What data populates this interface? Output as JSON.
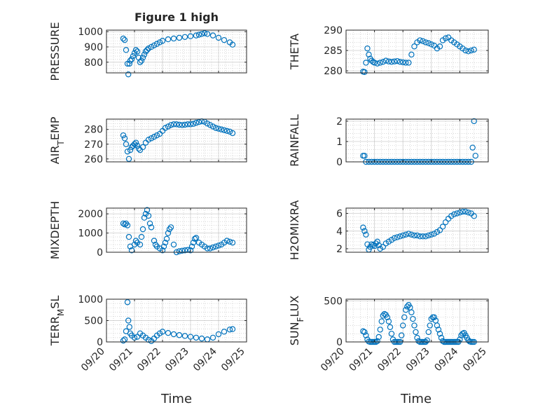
{
  "figure": {
    "title": "Figure 1 high",
    "xlabel": "Time",
    "colors": {
      "marker": "#0072BD",
      "axis": "#262626",
      "grid": "#b0b0b0",
      "background": "#ffffff"
    }
  },
  "chart_data": [
    {
      "type": "scatter",
      "title": "Figure 1 high",
      "ylabel": "PRESSURE",
      "xlabel": "",
      "x_range": [
        "09/20",
        "09/25"
      ],
      "x_ticks": [
        "09/20",
        "09/21",
        "09/22",
        "09/23",
        "09/24",
        "09/25"
      ],
      "show_x_ticklabels": false,
      "ylim": [
        730,
        1010
      ],
      "y_ticks": [
        800,
        900,
        1000
      ],
      "grid": true,
      "x_days": [
        20.6,
        20.65,
        20.7,
        20.75,
        20.78,
        20.82,
        20.85,
        20.9,
        20.95,
        21.0,
        21.05,
        21.1,
        21.15,
        21.2,
        21.25,
        21.3,
        21.35,
        21.4,
        21.45,
        21.5,
        21.6,
        21.7,
        21.8,
        21.9,
        22.0,
        22.2,
        22.4,
        22.6,
        22.8,
        23.0,
        23.2,
        23.3,
        23.4,
        23.5,
        23.6,
        23.8,
        24.0,
        24.2,
        24.4,
        24.5
      ],
      "values": [
        955,
        945,
        880,
        790,
        720,
        790,
        810,
        820,
        840,
        860,
        880,
        870,
        830,
        800,
        810,
        830,
        850,
        870,
        880,
        890,
        900,
        910,
        920,
        930,
        940,
        950,
        955,
        960,
        965,
        970,
        975,
        980,
        985,
        990,
        985,
        975,
        960,
        945,
        930,
        915
      ]
    },
    {
      "type": "scatter",
      "ylabel": "THETA",
      "xlabel": "",
      "x_range": [
        "09/20",
        "09/25"
      ],
      "x_ticks": [
        "09/20",
        "09/21",
        "09/22",
        "09/23",
        "09/24",
        "09/25"
      ],
      "show_x_ticklabels": false,
      "ylim": [
        279.5,
        290
      ],
      "y_ticks": [
        280,
        285,
        290
      ],
      "grid": true,
      "x_days": [
        20.6,
        20.65,
        20.7,
        20.75,
        20.8,
        20.85,
        20.9,
        20.95,
        21.0,
        21.1,
        21.2,
        21.3,
        21.4,
        21.5,
        21.6,
        21.7,
        21.8,
        21.9,
        22.0,
        22.1,
        22.2,
        22.3,
        22.4,
        22.5,
        22.6,
        22.7,
        22.8,
        22.9,
        23.0,
        23.1,
        23.2,
        23.3,
        23.4,
        23.5,
        23.6,
        23.7,
        23.8,
        23.9,
        24.0,
        24.1,
        24.2,
        24.3,
        24.4,
        24.5
      ],
      "values": [
        279.8,
        279.7,
        282.0,
        285.5,
        284.0,
        283.0,
        282.5,
        282.2,
        282.0,
        281.8,
        282.0,
        282.2,
        282.5,
        282.3,
        282.2,
        282.3,
        282.4,
        282.2,
        282.1,
        282.0,
        282.0,
        284.0,
        286.0,
        287.0,
        287.5,
        287.3,
        287.0,
        286.8,
        286.5,
        286.2,
        285.5,
        286.0,
        287.5,
        288.0,
        288.2,
        287.5,
        287.0,
        286.5,
        286.0,
        285.5,
        285.0,
        284.8,
        285.0,
        285.2
      ]
    },
    {
      "type": "scatter",
      "ylabel": "AIR_TEMP",
      "xlabel": "",
      "x_range": [
        "09/20",
        "09/25"
      ],
      "x_ticks": [
        "09/20",
        "09/21",
        "09/22",
        "09/23",
        "09/24",
        "09/25"
      ],
      "show_x_ticklabels": false,
      "ylim": [
        258,
        287
      ],
      "y_ticks": [
        260,
        270,
        280
      ],
      "grid": true,
      "x_days": [
        20.6,
        20.65,
        20.7,
        20.75,
        20.8,
        20.85,
        20.9,
        20.95,
        21.0,
        21.05,
        21.1,
        21.15,
        21.2,
        21.3,
        21.4,
        21.5,
        21.6,
        21.7,
        21.8,
        21.9,
        22.0,
        22.1,
        22.2,
        22.3,
        22.4,
        22.5,
        22.6,
        22.7,
        22.8,
        22.9,
        23.0,
        23.1,
        23.2,
        23.3,
        23.4,
        23.5,
        23.6,
        23.7,
        23.8,
        23.9,
        24.0,
        24.1,
        24.2,
        24.3,
        24.4,
        24.5
      ],
      "values": [
        276,
        274,
        270,
        265,
        260,
        266,
        268,
        269,
        270,
        271,
        269,
        267,
        266,
        268,
        271,
        273,
        274,
        275,
        276,
        277,
        279,
        281,
        282,
        283,
        283.5,
        283.5,
        283.2,
        283.0,
        283.2,
        283.5,
        283.5,
        283.8,
        284.5,
        285.0,
        285.5,
        285.2,
        284.0,
        283.0,
        282.0,
        281.0,
        280.5,
        280.0,
        279.5,
        279.0,
        278.5,
        277.5
      ]
    },
    {
      "type": "scatter",
      "ylabel": "RAINFALL",
      "xlabel": "",
      "x_range": [
        "09/20",
        "09/25"
      ],
      "x_ticks": [
        "09/20",
        "09/21",
        "09/22",
        "09/23",
        "09/24",
        "09/25"
      ],
      "show_x_ticklabels": false,
      "ylim": [
        0,
        2.1
      ],
      "y_ticks": [
        0,
        1,
        2
      ],
      "grid": true,
      "x_days": [
        20.6,
        20.65,
        20.7,
        20.8,
        20.9,
        21.0,
        21.1,
        21.2,
        21.3,
        21.4,
        21.5,
        21.6,
        21.7,
        21.8,
        21.9,
        22.0,
        22.1,
        22.2,
        22.3,
        22.4,
        22.5,
        22.6,
        22.7,
        22.8,
        22.9,
        23.0,
        23.1,
        23.2,
        23.3,
        23.4,
        23.5,
        23.6,
        23.7,
        23.8,
        23.9,
        24.0,
        24.1,
        24.2,
        24.3,
        24.4,
        24.45,
        24.5,
        24.55
      ],
      "values": [
        0.3,
        0.3,
        0,
        0,
        0,
        0,
        0,
        0,
        0,
        0,
        0,
        0,
        0,
        0,
        0,
        0,
        0,
        0,
        0,
        0,
        0,
        0,
        0,
        0,
        0,
        0,
        0,
        0,
        0,
        0,
        0,
        0,
        0,
        0,
        0,
        0,
        0,
        0,
        0,
        0,
        0.7,
        2.0,
        0.3
      ]
    },
    {
      "type": "scatter",
      "ylabel": "MIXDEPTH",
      "xlabel": "",
      "x_range": [
        "09/20",
        "09/25"
      ],
      "x_ticks": [
        "09/20",
        "09/21",
        "09/22",
        "09/23",
        "09/24",
        "09/25"
      ],
      "show_x_ticklabels": false,
      "ylim": [
        0,
        2300
      ],
      "y_ticks": [
        0,
        1000,
        2000
      ],
      "grid": true,
      "x_days": [
        20.6,
        20.65,
        20.7,
        20.75,
        20.8,
        20.85,
        20.9,
        21.0,
        21.05,
        21.1,
        21.2,
        21.25,
        21.3,
        21.35,
        21.4,
        21.45,
        21.5,
        21.55,
        21.6,
        21.7,
        21.75,
        21.8,
        21.9,
        22.0,
        22.05,
        22.1,
        22.15,
        22.2,
        22.25,
        22.3,
        22.4,
        22.5,
        22.6,
        22.7,
        22.8,
        22.9,
        23.0,
        23.05,
        23.1,
        23.15,
        23.2,
        23.3,
        23.4,
        23.5,
        23.6,
        23.7,
        23.8,
        23.9,
        24.0,
        24.1,
        24.2,
        24.3,
        24.4,
        24.5
      ],
      "values": [
        1500,
        1450,
        1500,
        1400,
        800,
        300,
        100,
        400,
        600,
        500,
        400,
        800,
        1200,
        1800,
        2000,
        2200,
        1900,
        1500,
        1300,
        600,
        400,
        300,
        200,
        100,
        300,
        500,
        700,
        1000,
        1200,
        1300,
        400,
        0,
        50,
        80,
        100,
        120,
        100,
        300,
        500,
        700,
        750,
        500,
        400,
        300,
        200,
        200,
        250,
        300,
        350,
        400,
        500,
        600,
        550,
        500
      ]
    },
    {
      "type": "scatter",
      "ylabel": "H2OMIXRA",
      "xlabel": "",
      "x_range": [
        "09/20",
        "09/25"
      ],
      "x_ticks": [
        "09/20",
        "09/21",
        "09/22",
        "09/23",
        "09/24",
        "09/25"
      ],
      "show_x_ticklabels": false,
      "ylim": [
        1.6,
        6.6
      ],
      "y_ticks": [
        2,
        4,
        6
      ],
      "grid": true,
      "x_days": [
        20.6,
        20.65,
        20.7,
        20.75,
        20.8,
        20.85,
        20.9,
        20.95,
        21.0,
        21.05,
        21.1,
        21.15,
        21.2,
        21.3,
        21.4,
        21.5,
        21.6,
        21.7,
        21.8,
        21.9,
        22.0,
        22.1,
        22.2,
        22.3,
        22.4,
        22.5,
        22.6,
        22.7,
        22.8,
        22.9,
        23.0,
        23.1,
        23.2,
        23.3,
        23.4,
        23.5,
        23.6,
        23.7,
        23.8,
        23.9,
        24.0,
        24.1,
        24.2,
        24.3,
        24.4,
        24.5
      ],
      "values": [
        4.4,
        4.0,
        3.6,
        2.5,
        1.9,
        2.2,
        2.5,
        2.4,
        2.3,
        2.6,
        2.8,
        2.4,
        2.0,
        2.2,
        2.6,
        2.8,
        3.0,
        3.2,
        3.3,
        3.4,
        3.5,
        3.6,
        3.7,
        3.6,
        3.5,
        3.5,
        3.4,
        3.4,
        3.4,
        3.5,
        3.6,
        3.7,
        3.9,
        4.1,
        4.5,
        5.0,
        5.4,
        5.7,
        5.9,
        6.0,
        6.1,
        6.2,
        6.2,
        6.1,
        6.0,
        5.7
      ]
    },
    {
      "type": "scatter",
      "ylabel": "TERR_MSL",
      "xlabel": "Time",
      "x_range": [
        "09/20",
        "09/25"
      ],
      "x_ticks": [
        "09/20",
        "09/21",
        "09/22",
        "09/23",
        "09/24",
        "09/25"
      ],
      "show_x_ticklabels": true,
      "ylim": [
        0,
        1000
      ],
      "y_ticks": [
        0,
        500,
        1000
      ],
      "grid": true,
      "x_days": [
        20.6,
        20.65,
        20.7,
        20.75,
        20.78,
        20.82,
        20.85,
        20.9,
        21.0,
        21.1,
        21.2,
        21.3,
        21.4,
        21.5,
        21.6,
        21.7,
        21.8,
        21.9,
        22.0,
        22.2,
        22.4,
        22.6,
        22.8,
        23.0,
        23.2,
        23.4,
        23.6,
        23.8,
        24.0,
        24.2,
        24.4,
        24.5
      ],
      "values": [
        30,
        60,
        250,
        930,
        500,
        350,
        200,
        150,
        100,
        120,
        200,
        150,
        100,
        50,
        20,
        80,
        150,
        200,
        240,
        210,
        180,
        160,
        140,
        120,
        100,
        80,
        60,
        100,
        180,
        240,
        290,
        300
      ]
    },
    {
      "type": "scatter",
      "ylabel": "SUN_FLUX",
      "xlabel": "Time",
      "x_range": [
        "09/20",
        "09/25"
      ],
      "x_ticks": [
        "09/20",
        "09/21",
        "09/22",
        "09/23",
        "09/24",
        "09/25"
      ],
      "show_x_ticklabels": true,
      "ylim": [
        0,
        520
      ],
      "y_ticks": [
        0,
        500
      ],
      "grid": true,
      "x_days": [
        20.6,
        20.65,
        20.7,
        20.75,
        20.8,
        20.85,
        20.9,
        20.95,
        21.0,
        21.05,
        21.1,
        21.15,
        21.2,
        21.25,
        21.3,
        21.35,
        21.4,
        21.45,
        21.5,
        21.55,
        21.6,
        21.65,
        21.7,
        21.75,
        21.8,
        21.85,
        21.9,
        21.95,
        22.0,
        22.05,
        22.1,
        22.15,
        22.2,
        22.25,
        22.3,
        22.35,
        22.4,
        22.45,
        22.5,
        22.55,
        22.6,
        22.65,
        22.7,
        22.75,
        22.8,
        22.85,
        22.9,
        22.95,
        23.0,
        23.05,
        23.1,
        23.15,
        23.2,
        23.25,
        23.3,
        23.35,
        23.4,
        23.45,
        23.5,
        23.55,
        23.6,
        23.65,
        23.7,
        23.75,
        23.8,
        23.85,
        23.9,
        23.95,
        24.0,
        24.05,
        24.1,
        24.15,
        24.2,
        24.25,
        24.3,
        24.35,
        24.4,
        24.45,
        24.5
      ],
      "values": [
        130,
        120,
        80,
        30,
        5,
        0,
        0,
        0,
        0,
        0,
        10,
        60,
        150,
        250,
        320,
        340,
        330,
        300,
        250,
        180,
        100,
        30,
        0,
        0,
        0,
        0,
        0,
        80,
        200,
        300,
        390,
        430,
        450,
        420,
        360,
        280,
        200,
        120,
        50,
        10,
        0,
        0,
        0,
        0,
        0,
        20,
        120,
        200,
        280,
        300,
        300,
        260,
        200,
        150,
        100,
        50,
        10,
        0,
        0,
        0,
        0,
        0,
        0,
        0,
        0,
        0,
        0,
        0,
        30,
        80,
        100,
        110,
        80,
        50,
        20,
        5,
        0,
        0,
        0
      ]
    }
  ]
}
